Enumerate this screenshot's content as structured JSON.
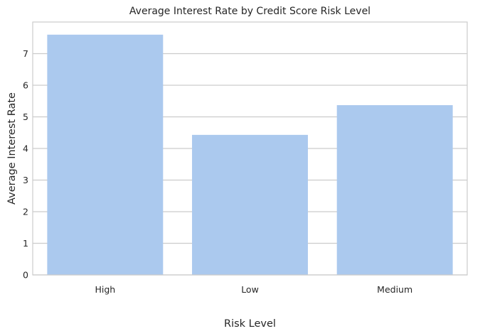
{
  "chart_data": {
    "type": "bar",
    "title": "Average Interest Rate by Credit Score Risk Level",
    "xlabel": "Risk Level",
    "ylabel": "Average Interest Rate",
    "categories": [
      "High",
      "Low",
      "Medium"
    ],
    "values": [
      7.6,
      4.43,
      5.37
    ],
    "ylim": [
      0,
      8
    ],
    "yticks": [
      0,
      1,
      2,
      3,
      4,
      5,
      6,
      7
    ],
    "grid": "horizontal",
    "bar_color": "#abc9ee",
    "grid_color": "#cccccc",
    "text_color": "#262626"
  }
}
